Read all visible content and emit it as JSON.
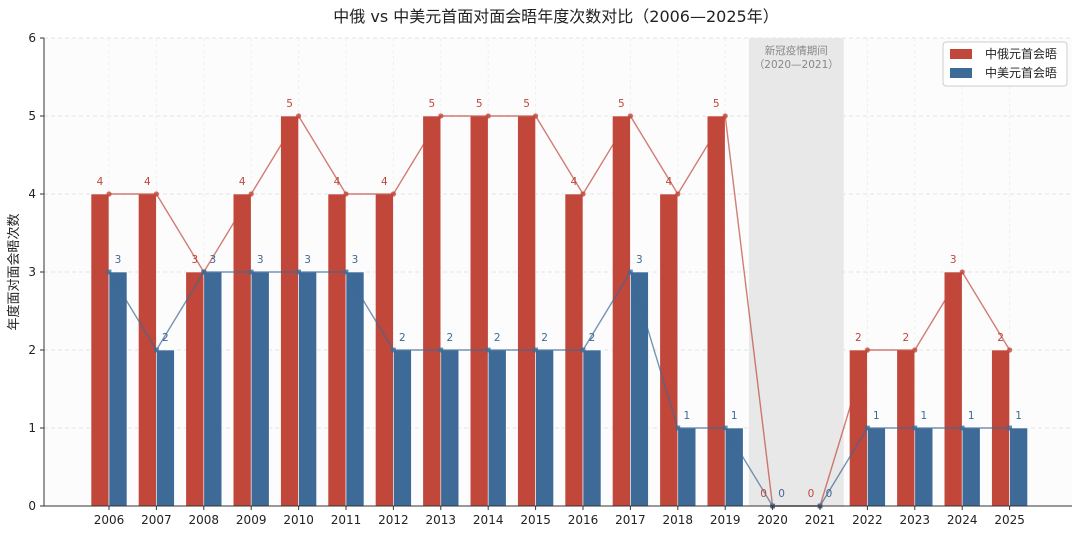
{
  "chart_data": {
    "type": "bar",
    "title": "中俄 vs 中美元首面对面会晤年度次数对比（2006—2025年）",
    "xlabel": "",
    "ylabel": "年度面对面会晤次数",
    "ylim": [
      0,
      6
    ],
    "yticks": [
      0,
      1,
      2,
      3,
      4,
      5,
      6
    ],
    "grid": true,
    "legend_position": "top-right",
    "categories": [
      "2006",
      "2007",
      "2008",
      "2009",
      "2010",
      "2011",
      "2012",
      "2013",
      "2014",
      "2015",
      "2016",
      "2017",
      "2018",
      "2019",
      "2020",
      "2021",
      "2022",
      "2023",
      "2024",
      "2025"
    ],
    "series": [
      {
        "name": "中俄元首会晤",
        "color": "#c0473a",
        "values": [
          4,
          4,
          3,
          4,
          5,
          4,
          4,
          5,
          5,
          5,
          4,
          5,
          4,
          5,
          0,
          0,
          2,
          2,
          3,
          2
        ]
      },
      {
        "name": "中美元首会晤",
        "color": "#3d6a96",
        "values": [
          3,
          2,
          3,
          3,
          3,
          3,
          2,
          2,
          2,
          2,
          2,
          3,
          1,
          1,
          0,
          0,
          1,
          1,
          1,
          1
        ]
      }
    ],
    "annotations": [
      {
        "text_line1": "新冠疫情期间",
        "text_line2": "（2020—2021）",
        "from_category": "2020",
        "to_category": "2021",
        "shade_color": "#e6e6e6"
      }
    ],
    "trend_lines": true
  }
}
